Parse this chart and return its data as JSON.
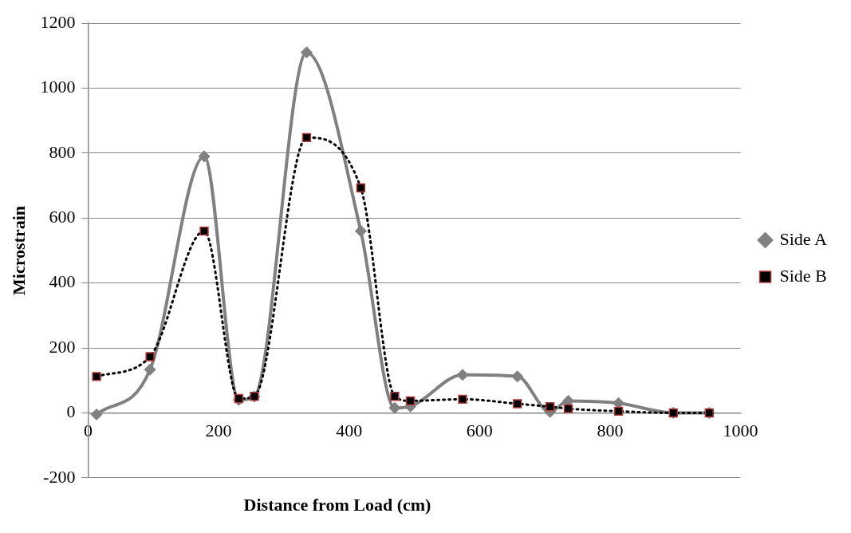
{
  "chart_data": {
    "type": "line",
    "xlabel": "Distance from Load (cm)",
    "ylabel": "Microstrain",
    "x": [
      13,
      95,
      178,
      231,
      255,
      335,
      418,
      470,
      494,
      574,
      658,
      708,
      736,
      813,
      897,
      952
    ],
    "series": [
      {
        "name": "Side A",
        "color": "#808080",
        "marker": "diamond",
        "line_style": "solid",
        "values": [
          -5,
          133,
          790,
          40,
          50,
          1110,
          560,
          15,
          20,
          117,
          112,
          3,
          37,
          30,
          0,
          0
        ]
      },
      {
        "name": "Side B",
        "color": "#000000",
        "marker": "square",
        "line_style": "dotted",
        "values": [
          112,
          173,
          560,
          44,
          51,
          848,
          693,
          51,
          37,
          42,
          28,
          19,
          13,
          5,
          0,
          0
        ]
      }
    ],
    "xlim": [
      0,
      1000
    ],
    "xticks": [
      0,
      200,
      400,
      600,
      800,
      1000
    ],
    "ylim": [
      -200,
      1200
    ],
    "yticks": [
      -200,
      0,
      200,
      400,
      600,
      800,
      1000,
      1200
    ],
    "grid": "y",
    "legend": "right"
  }
}
